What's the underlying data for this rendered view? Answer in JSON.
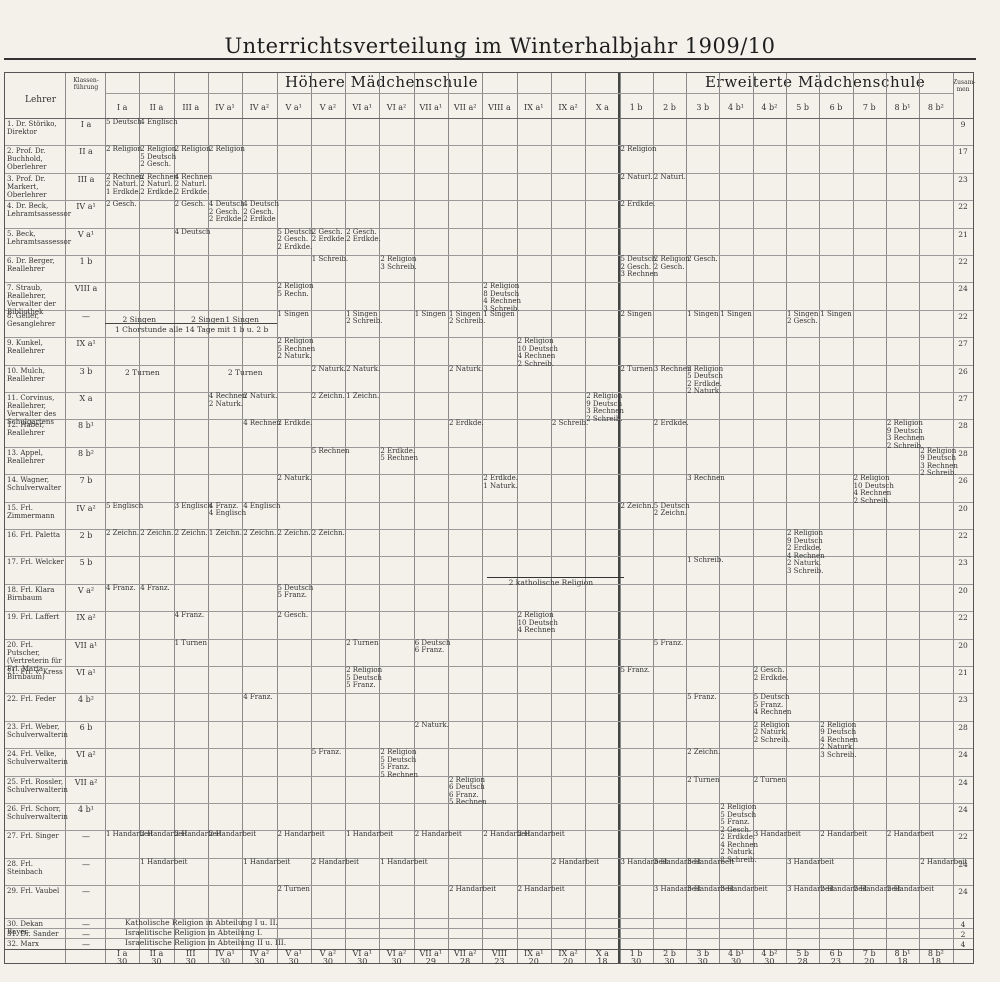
{
  "title": "Unterrichtsverteilung im Winterhalbjahr 1909/10",
  "header": {
    "lehrer_label": "Lehrer",
    "klassenfuehrung_label": "Klassen-führung",
    "section_hoehere": "Höhere Mädchenschule",
    "section_erweiterte": "Erweiterte Mädchenschule",
    "total_label": "Zusam-men"
  },
  "columns": [
    "I a",
    "II a",
    "III a",
    "IV a¹",
    "IV a²",
    "V a¹",
    "V a²",
    "VI a¹",
    "VI a²",
    "VII a¹",
    "VII a²",
    "VIII a",
    "IX a¹",
    "IX a²",
    "X a",
    "1 b",
    "2 b",
    "3 b",
    "4 b¹",
    "4 b²",
    "5 b",
    "6 b",
    "7 b",
    "8 b¹",
    "8 b²"
  ],
  "footer_columns": [
    "I a",
    "II a",
    "III",
    "IV a¹",
    "IV a²",
    "V a¹",
    "V a²",
    "VI a¹",
    "VI a²",
    "VII a¹",
    "VII a²",
    "VIII",
    "IX a¹",
    "IX a²",
    "X a",
    "1 b",
    "2 b",
    "3 b",
    "4 b¹",
    "4 b²",
    "5 b",
    "6 b",
    "7 b",
    "8 b¹",
    "8 b²"
  ],
  "footer_totals": [
    "30",
    "30",
    "30",
    "30",
    "30",
    "30",
    "30",
    "30",
    "30",
    "29",
    "28",
    "23",
    "20",
    "20",
    "18",
    "30",
    "30",
    "30",
    "30",
    "30",
    "28",
    "23",
    "20",
    "18",
    "18"
  ],
  "teachers": [
    {
      "name": "1. Dr. Störiko, Direktor",
      "kf": "I a",
      "total": "9"
    },
    {
      "name": "2. Prof. Dr. Buchhold, Oberlehrer",
      "kf": "II a",
      "total": "17"
    },
    {
      "name": "3. Prof. Dr. Markert, Oberlehrer",
      "kf": "III a",
      "total": "23"
    },
    {
      "name": "4. Dr. Beck, Lehramtsassessor",
      "kf": "IV a¹",
      "total": "22"
    },
    {
      "name": "5. Beck, Lehramtsassessor",
      "kf": "V a¹",
      "total": "21"
    },
    {
      "name": "6. Dr. Berger, Reallehrer",
      "kf": "1 b",
      "total": "22"
    },
    {
      "name": "7. Straub, Reallehrer, Verwalter der Bibliothek",
      "kf": "VIII a",
      "total": "24"
    },
    {
      "name": "8. Geller, Gesanglehrer",
      "kf": "—",
      "total": "22"
    },
    {
      "name": "9. Kunkel, Reallehrer",
      "kf": "IX a¹",
      "total": "27"
    },
    {
      "name": "10. Mulch, Reallehrer",
      "kf": "3 b",
      "total": "26"
    },
    {
      "name": "11. Corvinus, Reallehrer, Verwalter des Schulgartens",
      "kf": "X a",
      "total": "27"
    },
    {
      "name": "12. Haber, Reallehrer",
      "kf": "8 b¹",
      "total": "28"
    },
    {
      "name": "13. Appel, Reallehrer",
      "kf": "8 b²",
      "total": "28"
    },
    {
      "name": "14. Wagner, Schulverwalter",
      "kf": "7 b",
      "total": "26"
    },
    {
      "name": "15. Frl. Zimmermann",
      "kf": "IV a²",
      "total": "20"
    },
    {
      "name": "16. Frl. Paletta",
      "kf": "2 b",
      "total": "22"
    },
    {
      "name": "17. Frl. Welcker",
      "kf": "5 b",
      "total": "23"
    },
    {
      "name": "18. Frl. Klara Birnbaum",
      "kf": "V a²",
      "total": "20"
    },
    {
      "name": "19. Frl. Laffert",
      "kf": "IX a²",
      "total": "22"
    },
    {
      "name": "20. Frl. Putscher, (Vertreterin für Frl. Maria Birnbaum)",
      "kf": "VII a¹",
      "total": "20"
    },
    {
      "name": "21. Frl. v. Kress",
      "kf": "VI a¹",
      "total": "21"
    },
    {
      "name": "22. Frl. Feder",
      "kf": "4 b²",
      "total": "23"
    },
    {
      "name": "23. Frl. Weber, Schulverwalterin",
      "kf": "6 b",
      "total": "28"
    },
    {
      "name": "24. Frl. Velke, Schulverwalterin",
      "kf": "VI a²",
      "total": "24"
    },
    {
      "name": "25. Frl. Rossler, Schulverwalterin",
      "kf": "VII a²",
      "total": "24"
    },
    {
      "name": "26. Frl. Schorr, Schulverwalterin",
      "kf": "4 b¹",
      "total": "24"
    },
    {
      "name": "27. Frl. Singer",
      "kf": "—",
      "total": "22"
    },
    {
      "name": "28. Frl. Steinbach",
      "kf": "—",
      "total": "24"
    },
    {
      "name": "29. Frl. Vaubel",
      "kf": "—",
      "total": "24"
    },
    {
      "name": "30. Dekan Bayer",
      "kf": "—",
      "total": "4"
    },
    {
      "name": "31. Dr. Sander",
      "kf": "—",
      "total": "2"
    },
    {
      "name": "32. Marx",
      "kf": "—",
      "total": "4"
    }
  ],
  "cells": [
    {
      "r": 0,
      "c": 0,
      "t": "5 Deutsch"
    },
    {
      "r": 0,
      "c": 1,
      "t": "4 Englisch"
    },
    {
      "r": 1,
      "c": 0,
      "t": "2 Religion"
    },
    {
      "r": 1,
      "c": 1,
      "t": "2 Religion\n5 Deutsch\n2 Gesch."
    },
    {
      "r": 1,
      "c": 2,
      "t": "2 Religion"
    },
    {
      "r": 1,
      "c": 3,
      "t": "2 Religion"
    },
    {
      "r": 1,
      "c": 15,
      "t": "2 Religion"
    },
    {
      "r": 2,
      "c": 0,
      "t": "2 Rechnen\n2 Naturl.\n1 Erdkde."
    },
    {
      "r": 2,
      "c": 1,
      "t": "2 Rechnen\n2 Naturl.\n2 Erdkde."
    },
    {
      "r": 2,
      "c": 2,
      "t": "4 Rechnen\n2 Naturl.\n2 Erdkde."
    },
    {
      "r": 2,
      "c": 15,
      "t": "2 Naturl."
    },
    {
      "r": 2,
      "c": 16,
      "t": "2 Naturl."
    },
    {
      "r": 3,
      "c": 0,
      "t": "2 Gesch."
    },
    {
      "r": 3,
      "c": 2,
      "t": "2 Gesch."
    },
    {
      "r": 3,
      "c": 3,
      "t": "4 Deutsch\n2 Gesch.\n2 Erdkde."
    },
    {
      "r": 3,
      "c": 4,
      "t": "4 Deutsch\n2 Gesch.\n2 Erdkde"
    },
    {
      "r": 3,
      "c": 15,
      "t": "2 Erdkde."
    },
    {
      "r": 4,
      "c": 2,
      "t": "4 Deutsch"
    },
    {
      "r": 4,
      "c": 5,
      "t": "5 Deutsch\n2 Gesch.\n2 Erdkde."
    },
    {
      "r": 4,
      "c": 6,
      "t": "2 Gesch.\n2 Erdkde."
    },
    {
      "r": 4,
      "c": 7,
      "t": "2 Gesch.\n2 Erdkde."
    },
    {
      "r": 5,
      "c": 6,
      "t": "1 Schreib."
    },
    {
      "r": 5,
      "c": 8,
      "t": "2 Religion\n3 Schreib."
    },
    {
      "r": 5,
      "c": 15,
      "t": "5 Deutsch\n2 Gesch.\n3 Rechnen"
    },
    {
      "r": 5,
      "c": 16,
      "t": "2 Religion\n2 Gesch."
    },
    {
      "r": 5,
      "c": 17,
      "t": "2 Gesch."
    },
    {
      "r": 6,
      "c": 5,
      "t": "2 Religion\n5 Rechn."
    },
    {
      "r": 6,
      "c": 11,
      "t": "2 Religion\n8 Deutsch\n4 Rechnen\n3 Schreib."
    },
    {
      "r": 7,
      "c": 5,
      "t": "1 Singen"
    },
    {
      "r": 7,
      "c": 7,
      "t": "1 Singen\n2 Schreib."
    },
    {
      "r": 7,
      "c": 9,
      "t": "1 Singen"
    },
    {
      "r": 7,
      "c": 10,
      "t": "1 Singen\n2 Schreib."
    },
    {
      "r": 7,
      "c": 11,
      "t": "1 Singen"
    },
    {
      "r": 7,
      "c": 15,
      "t": "2 Singen"
    },
    {
      "r": 7,
      "c": 17,
      "t": "1 Singen"
    },
    {
      "r": 7,
      "c": 18,
      "t": "1 Singen"
    },
    {
      "r": 7,
      "c": 20,
      "t": "1 Singen\n2 Gesch."
    },
    {
      "r": 7,
      "c": 21,
      "t": "1 Singen"
    },
    {
      "r": 8,
      "c": 5,
      "t": "2 Religion\n5 Rechnen\n2 Naturk."
    },
    {
      "r": 8,
      "c": 12,
      "t": "2 Religion\n10 Deutsch\n4 Rechnen\n2 Schreib."
    },
    {
      "r": 9,
      "c": 6,
      "t": "2 Naturk."
    },
    {
      "r": 9,
      "c": 7,
      "t": "2 Naturk."
    },
    {
      "r": 9,
      "c": 10,
      "t": "2 Naturk."
    },
    {
      "r": 9,
      "c": 15,
      "t": "2 Turnen"
    },
    {
      "r": 9,
      "c": 16,
      "t": "3 Rechnen"
    },
    {
      "r": 9,
      "c": 17,
      "t": "2 Religion\n5 Deutsch\n2 Erdkde.\n2 Naturk."
    },
    {
      "r": 10,
      "c": 3,
      "t": "4 Rechnen\n2 Naturk."
    },
    {
      "r": 10,
      "c": 4,
      "t": "2 Naturk."
    },
    {
      "r": 10,
      "c": 6,
      "t": "2 Zeichn."
    },
    {
      "r": 10,
      "c": 7,
      "t": "1 Zeichn."
    },
    {
      "r": 10,
      "c": 14,
      "t": "2 Religion\n9 Deutsch\n3 Rechnen\n2 Schreib."
    },
    {
      "r": 11,
      "c": 4,
      "t": "4 Rechnen"
    },
    {
      "r": 11,
      "c": 5,
      "t": "2 Erdkde."
    },
    {
      "r": 11,
      "c": 10,
      "t": "2 Erdkde."
    },
    {
      "r": 11,
      "c": 13,
      "t": "2 Schreib."
    },
    {
      "r": 11,
      "c": 16,
      "t": "2 Erdkde."
    },
    {
      "r": 11,
      "c": 23,
      "t": "2 Religion\n9 Deutsch\n3 Rechnen\n2 Schreib."
    },
    {
      "r": 12,
      "c": 6,
      "t": "5 Rechnen"
    },
    {
      "r": 12,
      "c": 8,
      "t": "2 Erdkde.\n5 Rechnen"
    },
    {
      "r": 12,
      "c": 24,
      "t": "2 Religion\n9 Deutsch\n3 Rechnen\n2 Schreib."
    },
    {
      "r": 13,
      "c": 5,
      "t": "2 Naturk."
    },
    {
      "r": 13,
      "c": 11,
      "t": "2 Erdkde.\n1 Naturk."
    },
    {
      "r": 13,
      "c": 17,
      "t": "3 Rechnen"
    },
    {
      "r": 13,
      "c": 22,
      "t": "2 Religion\n10 Deutsch\n4 Rechnen\n2 Schreib."
    },
    {
      "r": 14,
      "c": 0,
      "t": "5 Englisch"
    },
    {
      "r": 14,
      "c": 2,
      "t": "3 Englisch"
    },
    {
      "r": 14,
      "c": 3,
      "t": "4 Franz.\n4 Englisch"
    },
    {
      "r": 14,
      "c": 4,
      "t": "4 Englisch"
    },
    {
      "r": 14,
      "c": 15,
      "t": "2 Zeichn."
    },
    {
      "r": 14,
      "c": 16,
      "t": "5 Deutsch\n2 Zeichn."
    },
    {
      "r": 15,
      "c": 0,
      "t": "2 Zeichn."
    },
    {
      "r": 15,
      "c": 1,
      "t": "2 Zeichn."
    },
    {
      "r": 15,
      "c": 2,
      "t": "2 Zeichn."
    },
    {
      "r": 15,
      "c": 3,
      "t": "1 Zeichn."
    },
    {
      "r": 15,
      "c": 4,
      "t": "2 Zeichn."
    },
    {
      "r": 15,
      "c": 5,
      "t": "2 Zeichn."
    },
    {
      "r": 15,
      "c": 6,
      "t": "2 Zeichn."
    },
    {
      "r": 15,
      "c": 20,
      "t": "2 Religion\n9 Deutsch\n2 Erdkde.\n4 Rechnen\n2 Naturk.\n3 Schreib."
    },
    {
      "r": 16,
      "c": 17,
      "t": "1 Schreib."
    },
    {
      "r": 17,
      "c": 0,
      "t": "4 Franz."
    },
    {
      "r": 17,
      "c": 1,
      "t": "4 Franz."
    },
    {
      "r": 17,
      "c": 5,
      "t": "5 Deutsch\n5 Franz."
    },
    {
      "r": 18,
      "c": 2,
      "t": "4 Franz."
    },
    {
      "r": 18,
      "c": 5,
      "t": "2 Gesch."
    },
    {
      "r": 18,
      "c": 12,
      "t": "2 Religion\n10 Deutsch\n4 Rechnen"
    },
    {
      "r": 19,
      "c": 2,
      "t": "1 Turnen"
    },
    {
      "r": 19,
      "c": 7,
      "t": "2 Turnen"
    },
    {
      "r": 19,
      "c": 9,
      "t": "6 Deutsch\n6 Franz."
    },
    {
      "r": 19,
      "c": 16,
      "t": "5 Franz."
    },
    {
      "r": 20,
      "c": 7,
      "t": "2 Religion\n5 Deutsch\n5 Franz."
    },
    {
      "r": 20,
      "c": 15,
      "t": "5 Franz."
    },
    {
      "r": 20,
      "c": 19,
      "t": "2 Gesch.\n2 Erdkde."
    },
    {
      "r": 21,
      "c": 4,
      "t": "4 Franz."
    },
    {
      "r": 21,
      "c": 17,
      "t": "5 Franz."
    },
    {
      "r": 21,
      "c": 19,
      "t": "5 Deutsch\n5 Franz.\n4 Rechnen"
    },
    {
      "r": 22,
      "c": 9,
      "t": "2 Naturk."
    },
    {
      "r": 22,
      "c": 19,
      "t": "2 Religion\n2 Naturk.\n2 Schreib."
    },
    {
      "r": 22,
      "c": 21,
      "t": "2 Religion\n9 Deutsch\n4 Rechnen\n2 Naturk.\n3 Schreib."
    },
    {
      "r": 23,
      "c": 6,
      "t": "5 Franz."
    },
    {
      "r": 23,
      "c": 8,
      "t": "2 Religion\n5 Deutsch\n5 Franz.\n5 Rechnen"
    },
    {
      "r": 23,
      "c": 17,
      "t": "2 Zeichn."
    },
    {
      "r": 24,
      "c": 10,
      "t": "2 Religion\n6 Deutsch\n6 Franz.\n5 Rechnen"
    },
    {
      "r": 24,
      "c": 17,
      "t": "2 Turnen"
    },
    {
      "r": 24,
      "c": 19,
      "t": "2 Turnen"
    },
    {
      "r": 25,
      "c": 18,
      "t": "2 Religion\n5 Deutsch\n5 Franz.\n2 Gesch.\n2 Erdkde.\n4 Rechnen\n2 Naturk.\n2 Schreib."
    },
    {
      "r": 26,
      "c": 0,
      "t": "1 Handarbeit"
    },
    {
      "r": 26,
      "c": 1,
      "t": "2 Handarbeit"
    },
    {
      "r": 26,
      "c": 2,
      "t": "2 Handarbeit"
    },
    {
      "r": 26,
      "c": 3,
      "t": "2 Handarbeit"
    },
    {
      "r": 26,
      "c": 5,
      "t": "2 Handarbeit"
    },
    {
      "r": 26,
      "c": 7,
      "t": "1 Handarbeit"
    },
    {
      "r": 26,
      "c": 9,
      "t": "2 Handarbeit"
    },
    {
      "r": 26,
      "c": 11,
      "t": "2 Handarbeit"
    },
    {
      "r": 26,
      "c": 12,
      "t": "2 Handarbeit"
    },
    {
      "r": 26,
      "c": 19,
      "t": "3 Handarbeit"
    },
    {
      "r": 26,
      "c": 21,
      "t": "2 Handarbeit"
    },
    {
      "r": 26,
      "c": 23,
      "t": "2 Handarbeit"
    },
    {
      "r": 27,
      "c": 1,
      "t": "1 Handarbeit"
    },
    {
      "r": 27,
      "c": 4,
      "t": "1 Handarbeit"
    },
    {
      "r": 27,
      "c": 6,
      "t": "2 Handarbeit"
    },
    {
      "r": 27,
      "c": 8,
      "t": "1 Handarbeit"
    },
    {
      "r": 27,
      "c": 13,
      "t": "2 Handarbeit"
    },
    {
      "r": 27,
      "c": 15,
      "t": "3 Handarbeit"
    },
    {
      "r": 27,
      "c": 16,
      "t": "3 Handarbeit"
    },
    {
      "r": 27,
      "c": 17,
      "t": "3 Handarbeit"
    },
    {
      "r": 27,
      "c": 20,
      "t": "3 Handarbeit"
    },
    {
      "r": 27,
      "c": 24,
      "t": "2 Handarbeit"
    },
    {
      "r": 28,
      "c": 5,
      "t": "2 Turnen"
    },
    {
      "r": 28,
      "c": 10,
      "t": "2 Handarbeit"
    },
    {
      "r": 28,
      "c": 12,
      "t": "2 Handarbeit"
    },
    {
      "r": 28,
      "c": 16,
      "t": "3 Handarbeit"
    },
    {
      "r": 28,
      "c": 17,
      "t": "3 Handarbeit"
    },
    {
      "r": 28,
      "c": 18,
      "t": "3 Handarbeit"
    },
    {
      "r": 28,
      "c": 20,
      "t": "3 Handarbeit"
    },
    {
      "r": 28,
      "c": 21,
      "t": "2 Handarbeit"
    },
    {
      "r": 28,
      "c": 22,
      "t": "2 Handarbeit"
    },
    {
      "r": 28,
      "c": 23,
      "t": "2 Handarbeit"
    }
  ],
  "spans": {
    "singen_row": [
      {
        "c0": 0,
        "c1": 1,
        "t": "2 Singen"
      },
      {
        "c0": 2,
        "c1": 3,
        "t": "2 Singen"
      },
      {
        "c0": 3,
        "c1": 4,
        "t": "1 Singen"
      }
    ],
    "chorstunde": "1 Chorstunde alle 14 Tage mit 1 b u. 2 b",
    "turnen_m1": "2 Turnen",
    "turnen_m2": "2 Turnen",
    "religion_kath": "2 katholische Religion",
    "bottom_notes": [
      "Katholische Religion in Abteilung I u. II.",
      "Israelitische Religion in Abteilung I.",
      "Israelitische Religion in Abteilung II u. III."
    ]
  }
}
